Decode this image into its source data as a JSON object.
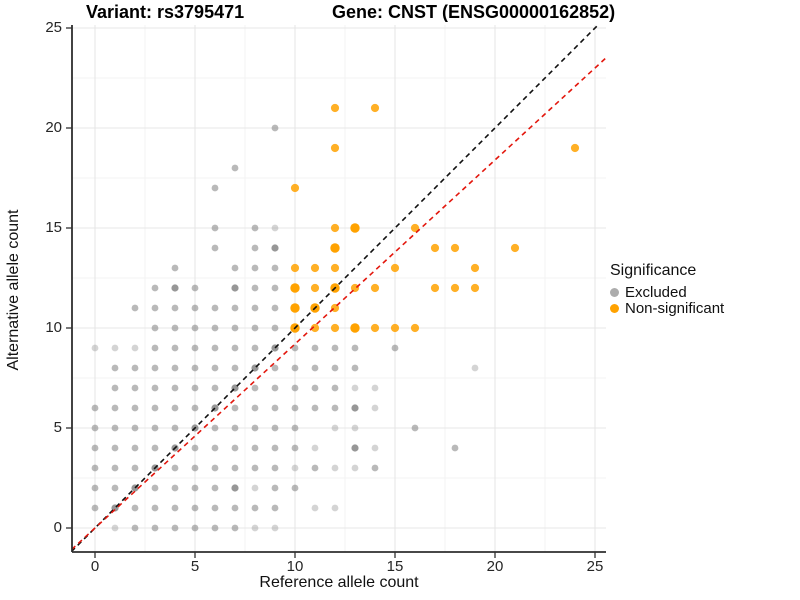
{
  "header": {
    "title_left": "Variant: rs3795471",
    "title_right": "Gene: CNST (ENSG00000162852)"
  },
  "legend": {
    "title": "Significance",
    "items": [
      {
        "label": "Excluded",
        "color": "#ACACAC"
      },
      {
        "label": "Non-significant",
        "color": "#FFA200"
      }
    ]
  },
  "chart_data": {
    "type": "scatter",
    "xlabel": "Reference allele count",
    "ylabel": "Alternative allele count",
    "x_ticks": [
      0,
      5,
      10,
      15,
      20,
      25
    ],
    "y_ticks": [
      0,
      5,
      10,
      15,
      20,
      25
    ],
    "minor_ticks": [
      2.5,
      7.5,
      12.5,
      17.5,
      22.5
    ],
    "xlim": [
      -1.15,
      25.55
    ],
    "ylim": [
      -1.2,
      25.15
    ],
    "grid": "major and minor, light gray, white background",
    "legend_position": "right",
    "point_note": "third value = relative darkness/overplot 1=light 2=normal 3=dark",
    "series": [
      {
        "name": "Excluded",
        "color": "#808080",
        "points": [
          [
            1,
            0,
            1
          ],
          [
            2,
            0,
            2
          ],
          [
            3,
            0,
            2
          ],
          [
            4,
            0,
            2
          ],
          [
            5,
            0,
            2
          ],
          [
            6,
            0,
            2
          ],
          [
            7,
            0,
            2
          ],
          [
            8,
            0,
            1
          ],
          [
            9,
            0,
            1
          ],
          [
            0,
            1,
            2
          ],
          [
            1,
            1,
            3
          ],
          [
            2,
            1,
            2
          ],
          [
            3,
            1,
            2
          ],
          [
            4,
            1,
            2
          ],
          [
            5,
            1,
            2
          ],
          [
            6,
            1,
            2
          ],
          [
            7,
            1,
            2
          ],
          [
            8,
            1,
            2
          ],
          [
            9,
            1,
            2
          ],
          [
            11,
            1,
            1
          ],
          [
            12,
            1,
            1
          ],
          [
            0,
            2,
            2
          ],
          [
            1,
            2,
            2
          ],
          [
            2,
            2,
            3
          ],
          [
            3,
            2,
            2
          ],
          [
            4,
            2,
            2
          ],
          [
            5,
            2,
            2
          ],
          [
            6,
            2,
            2
          ],
          [
            7,
            2,
            3
          ],
          [
            8,
            2,
            1
          ],
          [
            9,
            2,
            2
          ],
          [
            10,
            2,
            2
          ],
          [
            0,
            3,
            2
          ],
          [
            1,
            3,
            2
          ],
          [
            2,
            3,
            2
          ],
          [
            3,
            3,
            3
          ],
          [
            4,
            3,
            2
          ],
          [
            5,
            3,
            2
          ],
          [
            6,
            3,
            2
          ],
          [
            7,
            3,
            2
          ],
          [
            8,
            3,
            2
          ],
          [
            9,
            3,
            2
          ],
          [
            10,
            3,
            1
          ],
          [
            11,
            3,
            2
          ],
          [
            12,
            3,
            1
          ],
          [
            13,
            3,
            1
          ],
          [
            14,
            3,
            2
          ],
          [
            0,
            4,
            2
          ],
          [
            1,
            4,
            2
          ],
          [
            2,
            4,
            2
          ],
          [
            3,
            4,
            2
          ],
          [
            4,
            4,
            3
          ],
          [
            5,
            4,
            2
          ],
          [
            6,
            4,
            2
          ],
          [
            7,
            4,
            2
          ],
          [
            8,
            4,
            2
          ],
          [
            9,
            4,
            2
          ],
          [
            10,
            4,
            2
          ],
          [
            11,
            4,
            1
          ],
          [
            13,
            4,
            3
          ],
          [
            14,
            4,
            1
          ],
          [
            18,
            4,
            2
          ],
          [
            0,
            5,
            2
          ],
          [
            1,
            5,
            2
          ],
          [
            2,
            5,
            2
          ],
          [
            3,
            5,
            2
          ],
          [
            4,
            5,
            2
          ],
          [
            5,
            5,
            3
          ],
          [
            6,
            5,
            2
          ],
          [
            7,
            5,
            2
          ],
          [
            8,
            5,
            2
          ],
          [
            9,
            5,
            2
          ],
          [
            10,
            5,
            2
          ],
          [
            12,
            5,
            1
          ],
          [
            13,
            5,
            1
          ],
          [
            16,
            5,
            2
          ],
          [
            0,
            6,
            2
          ],
          [
            1,
            6,
            2
          ],
          [
            2,
            6,
            2
          ],
          [
            3,
            6,
            2
          ],
          [
            4,
            6,
            2
          ],
          [
            5,
            6,
            2
          ],
          [
            6,
            6,
            3
          ],
          [
            7,
            6,
            2
          ],
          [
            8,
            6,
            2
          ],
          [
            9,
            6,
            2
          ],
          [
            10,
            6,
            2
          ],
          [
            11,
            6,
            2
          ],
          [
            12,
            6,
            2
          ],
          [
            13,
            6,
            3
          ],
          [
            14,
            6,
            1
          ],
          [
            1,
            7,
            2
          ],
          [
            2,
            7,
            2
          ],
          [
            3,
            7,
            2
          ],
          [
            4,
            7,
            2
          ],
          [
            5,
            7,
            2
          ],
          [
            6,
            7,
            2
          ],
          [
            7,
            7,
            3
          ],
          [
            8,
            7,
            2
          ],
          [
            9,
            7,
            2
          ],
          [
            10,
            7,
            2
          ],
          [
            11,
            7,
            2
          ],
          [
            12,
            7,
            2
          ],
          [
            13,
            7,
            1
          ],
          [
            14,
            7,
            1
          ],
          [
            1,
            8,
            2
          ],
          [
            2,
            8,
            2
          ],
          [
            3,
            8,
            2
          ],
          [
            4,
            8,
            2
          ],
          [
            5,
            8,
            2
          ],
          [
            6,
            8,
            2
          ],
          [
            7,
            8,
            2
          ],
          [
            8,
            8,
            3
          ],
          [
            9,
            8,
            2
          ],
          [
            10,
            8,
            2
          ],
          [
            11,
            8,
            2
          ],
          [
            12,
            8,
            2
          ],
          [
            13,
            8,
            2
          ],
          [
            19,
            8,
            1
          ],
          [
            0,
            9,
            1
          ],
          [
            1,
            9,
            1
          ],
          [
            2,
            9,
            1
          ],
          [
            3,
            9,
            2
          ],
          [
            4,
            9,
            2
          ],
          [
            5,
            9,
            2
          ],
          [
            6,
            9,
            2
          ],
          [
            7,
            9,
            2
          ],
          [
            8,
            9,
            2
          ],
          [
            9,
            9,
            3
          ],
          [
            10,
            9,
            2
          ],
          [
            11,
            9,
            2
          ],
          [
            12,
            9,
            2
          ],
          [
            13,
            9,
            2
          ],
          [
            15,
            9,
            2
          ],
          [
            3,
            10,
            2
          ],
          [
            4,
            10,
            2
          ],
          [
            5,
            10,
            2
          ],
          [
            6,
            10,
            2
          ],
          [
            7,
            10,
            2
          ],
          [
            8,
            10,
            2
          ],
          [
            9,
            10,
            2
          ],
          [
            2,
            11,
            2
          ],
          [
            3,
            11,
            2
          ],
          [
            4,
            11,
            2
          ],
          [
            5,
            11,
            2
          ],
          [
            6,
            11,
            2
          ],
          [
            7,
            11,
            2
          ],
          [
            8,
            11,
            2
          ],
          [
            9,
            11,
            2
          ],
          [
            3,
            12,
            2
          ],
          [
            4,
            12,
            3
          ],
          [
            5,
            12,
            2
          ],
          [
            7,
            12,
            3
          ],
          [
            8,
            12,
            2
          ],
          [
            9,
            12,
            2
          ],
          [
            4,
            13,
            2
          ],
          [
            7,
            13,
            2
          ],
          [
            8,
            13,
            2
          ],
          [
            9,
            13,
            2
          ],
          [
            6,
            14,
            2
          ],
          [
            8,
            14,
            2
          ],
          [
            9,
            14,
            3
          ],
          [
            6,
            15,
            2
          ],
          [
            8,
            15,
            2
          ],
          [
            9,
            15,
            1
          ],
          [
            6,
            17,
            2
          ],
          [
            7,
            18,
            2
          ],
          [
            9,
            20,
            2
          ]
        ]
      },
      {
        "name": "Non-significant",
        "color": "#FFA200",
        "points": [
          [
            10,
            10,
            3
          ],
          [
            11,
            10,
            2
          ],
          [
            12,
            10,
            2
          ],
          [
            13,
            10,
            3
          ],
          [
            14,
            10,
            2
          ],
          [
            15,
            10,
            2
          ],
          [
            16,
            10,
            2
          ],
          [
            10,
            11,
            3
          ],
          [
            11,
            11,
            3
          ],
          [
            12,
            11,
            2
          ],
          [
            10,
            12,
            3
          ],
          [
            11,
            12,
            2
          ],
          [
            12,
            12,
            3
          ],
          [
            13,
            12,
            2
          ],
          [
            14,
            12,
            2
          ],
          [
            17,
            12,
            2
          ],
          [
            18,
            12,
            2
          ],
          [
            19,
            12,
            2
          ],
          [
            10,
            13,
            2
          ],
          [
            11,
            13,
            2
          ],
          [
            12,
            13,
            2
          ],
          [
            15,
            13,
            2
          ],
          [
            19,
            13,
            2
          ],
          [
            12,
            14,
            3
          ],
          [
            17,
            14,
            2
          ],
          [
            18,
            14,
            2
          ],
          [
            21,
            14,
            2
          ],
          [
            12,
            15,
            2
          ],
          [
            13,
            15,
            3
          ],
          [
            16,
            15,
            2
          ],
          [
            10,
            17,
            2
          ],
          [
            12,
            19,
            2
          ],
          [
            24,
            19,
            2
          ],
          [
            12,
            21,
            2
          ],
          [
            14,
            21,
            2
          ]
        ]
      }
    ],
    "lines": [
      {
        "name": "identity",
        "slope": 1.0,
        "intercept": 0,
        "style": "dashed",
        "color": "#111111"
      },
      {
        "name": "fit",
        "slope": 0.92,
        "intercept": 0,
        "style": "dashed",
        "color": "#E3170D"
      }
    ]
  }
}
